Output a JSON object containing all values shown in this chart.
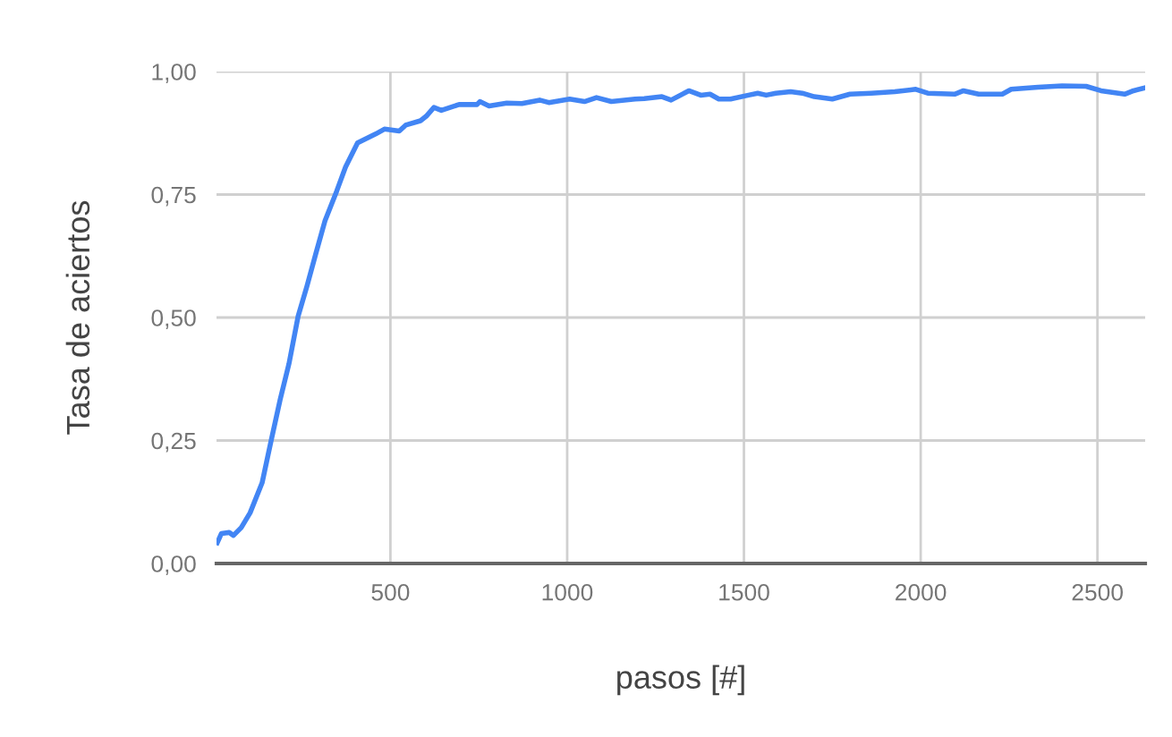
{
  "chart_data": {
    "type": "line",
    "xlabel": "pasos [#]",
    "ylabel": "Tasa de aciertos",
    "x": [
      10,
      22,
      44,
      56,
      78,
      103,
      137,
      162,
      188,
      213,
      239,
      264,
      289,
      315,
      348,
      373,
      407,
      458,
      483,
      525,
      543,
      585,
      601,
      623,
      644,
      694,
      745,
      753,
      779,
      829,
      872,
      922,
      948,
      1007,
      1049,
      1083,
      1125,
      1192,
      1218,
      1268,
      1294,
      1344,
      1378,
      1404,
      1429,
      1462,
      1513,
      1539,
      1563,
      1590,
      1632,
      1665,
      1699,
      1750,
      1800,
      1860,
      1927,
      1986,
      2020,
      2096,
      2121,
      2164,
      2231,
      2256,
      2332,
      2400,
      2468,
      2510,
      2577,
      2602,
      2630
    ],
    "series": [
      {
        "color": "#4285f4",
        "values": [
          0.042,
          0.061,
          0.063,
          0.057,
          0.073,
          0.103,
          0.164,
          0.248,
          0.333,
          0.406,
          0.503,
          0.564,
          0.63,
          0.697,
          0.757,
          0.806,
          0.855,
          0.873,
          0.883,
          0.879,
          0.891,
          0.9,
          0.909,
          0.927,
          0.921,
          0.933,
          0.933,
          0.939,
          0.93,
          0.936,
          0.935,
          0.942,
          0.937,
          0.944,
          0.939,
          0.947,
          0.939,
          0.944,
          0.945,
          0.949,
          0.942,
          0.961,
          0.952,
          0.954,
          0.944,
          0.944,
          0.952,
          0.956,
          0.952,
          0.956,
          0.959,
          0.956,
          0.949,
          0.944,
          0.954,
          0.956,
          0.959,
          0.964,
          0.956,
          0.954,
          0.961,
          0.954,
          0.954,
          0.964,
          0.968,
          0.971,
          0.97,
          0.961,
          0.954,
          0.961,
          0.966
        ]
      }
    ],
    "xlim": [
      8,
      2635
    ],
    "xticks": [
      500,
      1000,
      1500,
      2000,
      2500
    ],
    "ylim": [
      0,
      1
    ],
    "yticks": [
      {
        "value": 0,
        "label": "0,00"
      },
      {
        "value": 0.25,
        "label": "0,25"
      },
      {
        "value": 0.5,
        "label": "0,50"
      },
      {
        "value": 0.75,
        "label": "0,75"
      },
      {
        "value": 1,
        "label": "1,00"
      }
    ],
    "grid": true,
    "legend": false,
    "marker": "none",
    "line_style": "solid"
  }
}
